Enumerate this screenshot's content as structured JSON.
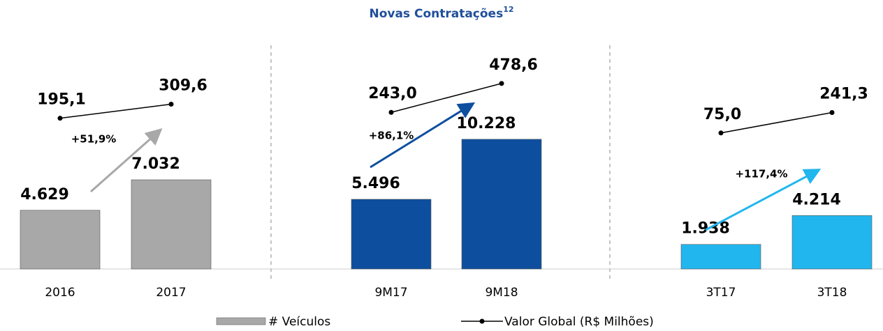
{
  "chart_data": {
    "type": "bar",
    "title": "Novas Contratações",
    "title_superscript": "12",
    "categories": [
      "2016",
      "2017",
      "9M17",
      "9M18",
      "3T17",
      "3T18"
    ],
    "series": [
      {
        "name": "# Veículos",
        "colors": [
          "#a8a8a8",
          "#a8a8a8",
          "#0d4f9e",
          "#0d4f9e",
          "#22b6ee",
          "#22b6ee"
        ],
        "values": [
          4629,
          7032,
          5496,
          10228,
          1938,
          4214
        ],
        "value_labels": [
          "4.629",
          "7.032",
          "5.496",
          "10.228",
          "1.938",
          "4.214"
        ]
      },
      {
        "name": "Valor Global (R$ Milhões)",
        "type": "line",
        "color": "#000000",
        "values": [
          195.1,
          309.6,
          243.0,
          478.6,
          75.0,
          241.3
        ],
        "value_labels": [
          "195,1",
          "309,6",
          "243,0",
          "478,6",
          "75,0",
          "241,3"
        ]
      }
    ],
    "annotations": [
      "+51,9%",
      "+86,1%",
      "+117,4%"
    ]
  }
}
